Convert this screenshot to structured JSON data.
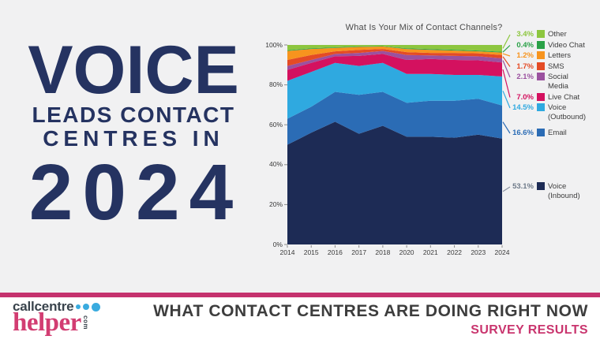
{
  "headline": {
    "line1": "VOICE",
    "line2": "LEADS CONTACT",
    "line3": "CENTRES IN",
    "line4": "2024",
    "color": "#253361"
  },
  "chart_data": {
    "type": "area",
    "stacked": true,
    "title": "What Is Your Mix of Contact Channels?",
    "x": [
      "2014",
      "2015",
      "2016",
      "2017",
      "2018",
      "2020",
      "2021",
      "2022",
      "2023",
      "2024"
    ],
    "ylim": [
      0,
      100
    ],
    "yticks": [
      "100%",
      "80%",
      "60%",
      "40%",
      "20%",
      "0%"
    ],
    "grid": false,
    "legend_position": "right",
    "series": [
      {
        "key": "voice-inbound",
        "name": "Voice (Inbound)",
        "color": "#1d2b55",
        "values": [
          50,
          56,
          61.5,
          55.5,
          59.5,
          54,
          54,
          53.5,
          55,
          53.1
        ]
      },
      {
        "key": "email",
        "name": "Email",
        "color": "#2b6cb5",
        "values": [
          13,
          13,
          15,
          19.5,
          17,
          17,
          18,
          18.5,
          18,
          16.6
        ]
      },
      {
        "key": "voice-outbound",
        "name": "Voice (Outbound)",
        "color": "#2fa9e0",
        "values": [
          19,
          17.5,
          14.5,
          14.5,
          14.5,
          14.5,
          13.5,
          13,
          12,
          14.5
        ]
      },
      {
        "key": "live-chat",
        "name": "Live Chat",
        "color": "#d4115f",
        "values": [
          5.5,
          4.5,
          3.3,
          5,
          4.5,
          7,
          7.5,
          7.5,
          7.3,
          7.0
        ]
      },
      {
        "key": "social-media",
        "name": "Social Media",
        "color": "#9b519f",
        "values": [
          2,
          1.5,
          1.2,
          1.5,
          1.5,
          2.5,
          1.8,
          2,
          2,
          2.1
        ]
      },
      {
        "key": "sms",
        "name": "SMS",
        "color": "#e44b25",
        "values": [
          3,
          2.5,
          1.3,
          1.5,
          1,
          1.4,
          1.2,
          1.5,
          1.5,
          1.7
        ]
      },
      {
        "key": "letters",
        "name": "Letters",
        "color": "#f7941e",
        "values": [
          4.5,
          3,
          1.7,
          1.5,
          1.2,
          1.6,
          1.5,
          1.2,
          1,
          1.2
        ]
      },
      {
        "key": "video-chat",
        "name": "Video Chat",
        "color": "#2aa147",
        "values": [
          0.3,
          0.3,
          0.3,
          0.3,
          0.2,
          0.3,
          0.4,
          0.4,
          0.4,
          0.4
        ]
      },
      {
        "key": "other",
        "name": "Other",
        "color": "#8dc63f",
        "values": [
          2.7,
          1.7,
          1.2,
          0.7,
          0.6,
          1.7,
          2.1,
          2.4,
          2.8,
          3.4
        ]
      }
    ],
    "legend": [
      {
        "key": "other",
        "pct": "3.4%",
        "label": "Other",
        "color": "#8dc63f",
        "pct_color": "#8dc63f"
      },
      {
        "key": "video-chat",
        "pct": "0.4%",
        "label": "Video Chat",
        "color": "#2aa147",
        "pct_color": "#2aa147"
      },
      {
        "key": "letters",
        "pct": "1.2%",
        "label": "Letters",
        "color": "#f7941e",
        "pct_color": "#f7941e"
      },
      {
        "key": "sms",
        "pct": "1.7%",
        "label": "SMS",
        "color": "#e44b25",
        "pct_color": "#e44b25"
      },
      {
        "key": "social-media",
        "pct": "2.1%",
        "label": "Social Media",
        "color": "#9b519f",
        "pct_color": "#9b519f"
      },
      {
        "key": "live-chat",
        "pct": "7.0%",
        "label": "Live Chat",
        "color": "#d4115f",
        "pct_color": "#d4115f"
      },
      {
        "key": "voice-outbound",
        "pct": "14.5%",
        "label": "Voice (Outbound)",
        "color": "#2fa9e0",
        "pct_color": "#2fa9e0"
      },
      {
        "key": "email",
        "pct": "16.6%",
        "label": "Email",
        "color": "#2b6cb5",
        "pct_color": "#2b6cb5"
      },
      {
        "key": "voice-inbound",
        "pct": "53.1%",
        "label": "Voice (Inbound)",
        "color": "#1d2b55",
        "pct_color": "#6e7a89",
        "line_color": "#8a93a1"
      }
    ]
  },
  "footer": {
    "tagline": "WHAT CONTACT CENTRES ARE DOING RIGHT NOW",
    "subline": "SURVEY RESULTS",
    "accent_pink": "#c5326e",
    "logo": {
      "part1": "callcentre",
      "part2": "helper",
      "part3": "com"
    }
  }
}
